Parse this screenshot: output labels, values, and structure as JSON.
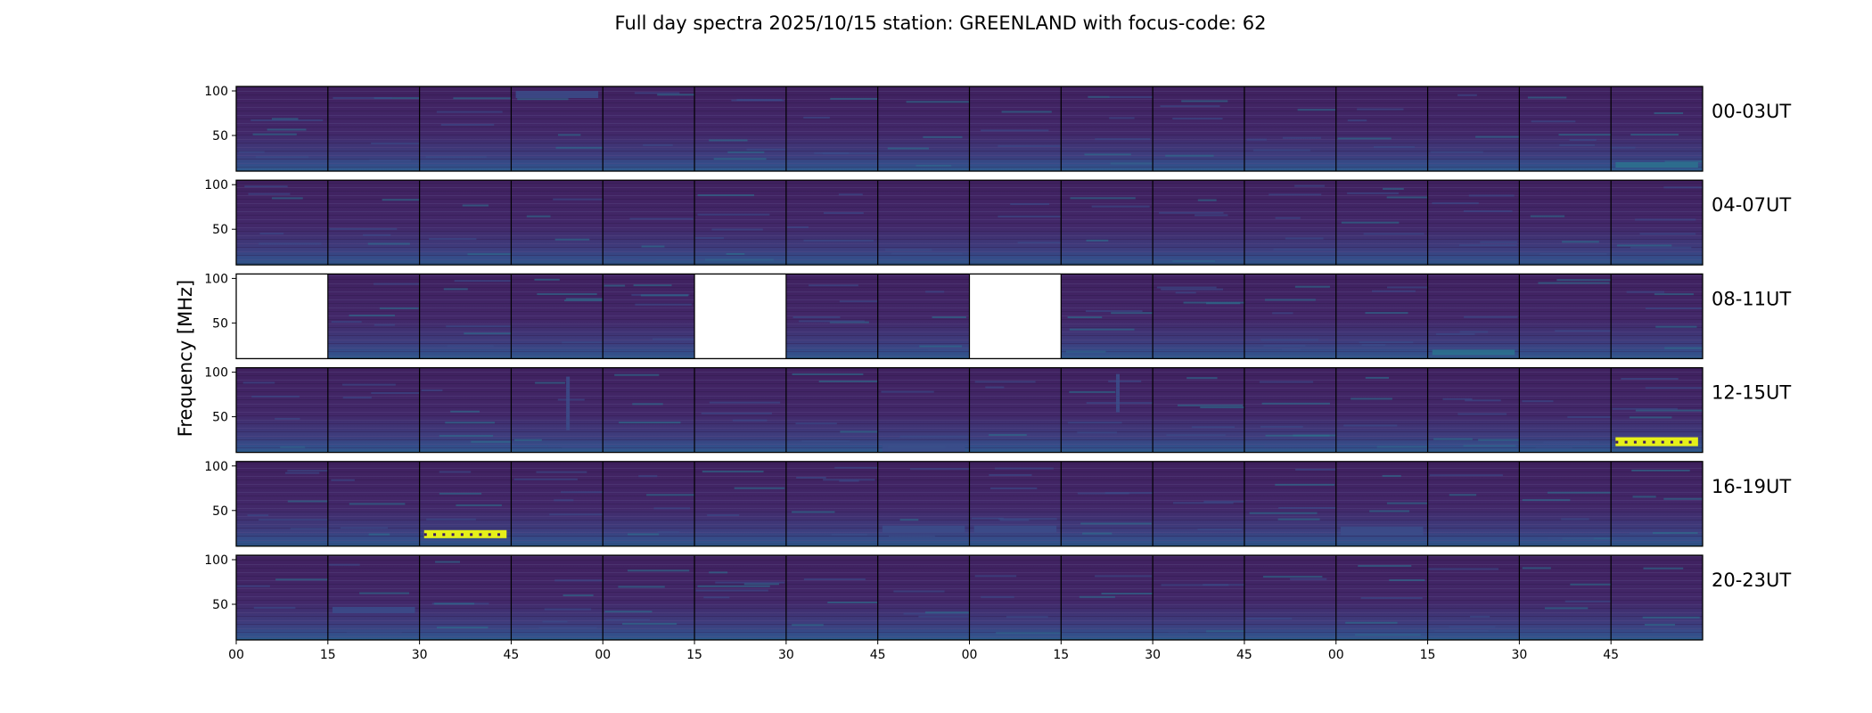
{
  "chart_data": {
    "type": "heatmap",
    "title": "Full day spectra 2025/10/15 station: GREENLAND with focus-code: 62",
    "ylabel": "Frequency [MHz]",
    "ylim": [
      10,
      105
    ],
    "yticks": [
      "100",
      "50"
    ],
    "ytick_values": [
      100,
      50
    ],
    "xticks": [
      "00",
      "15",
      "30",
      "45",
      "00",
      "15",
      "30",
      "45",
      "00",
      "15",
      "30",
      "45",
      "00",
      "15",
      "30",
      "45"
    ],
    "minutes_per_panel": 15,
    "rows": [
      {
        "label": "00-03UT",
        "missing": []
      },
      {
        "label": "04-07UT",
        "missing": []
      },
      {
        "label": "08-11UT",
        "missing": [
          0,
          5,
          8
        ]
      },
      {
        "label": "12-15UT",
        "missing": []
      },
      {
        "label": "16-19UT",
        "missing": []
      },
      {
        "label": "20-23UT",
        "missing": []
      }
    ],
    "colormap": [
      "#3b1b63",
      "#44226d",
      "#3b4c8a",
      "#2c728e",
      "#21a685",
      "#9fda3a",
      "#e6f019"
    ],
    "features": [
      {
        "row": 0,
        "panel": 15,
        "f0": 14,
        "f1": 20,
        "level": 0.45
      },
      {
        "row": 0,
        "panel": 3,
        "f0": 92,
        "f1": 100,
        "level": 0.4
      },
      {
        "row": 2,
        "panel": 13,
        "f0": 14,
        "f1": 20,
        "level": 0.45
      },
      {
        "row": 3,
        "panel": 15,
        "f0": 17,
        "f1": 27,
        "level": 1.0
      },
      {
        "row": 3,
        "panel": 7,
        "f0": 10,
        "f1": 20,
        "level": 0.35
      },
      {
        "row": 3,
        "panel": 3,
        "f0": 35,
        "f1": 95,
        "level": 0.3
      },
      {
        "row": 3,
        "panel": 9,
        "f0": 55,
        "f1": 98,
        "level": 0.35
      },
      {
        "row": 4,
        "panel": 2,
        "f0": 19,
        "f1": 28,
        "level": 1.0
      },
      {
        "row": 4,
        "panel": 7,
        "f0": 25,
        "f1": 33,
        "level": 0.3
      },
      {
        "row": 4,
        "panel": 8,
        "f0": 25,
        "f1": 33,
        "level": 0.35
      },
      {
        "row": 4,
        "panel": 12,
        "f0": 22,
        "f1": 32,
        "level": 0.4
      },
      {
        "row": 5,
        "panel": 1,
        "f0": 40,
        "f1": 47,
        "level": 0.25
      }
    ]
  }
}
